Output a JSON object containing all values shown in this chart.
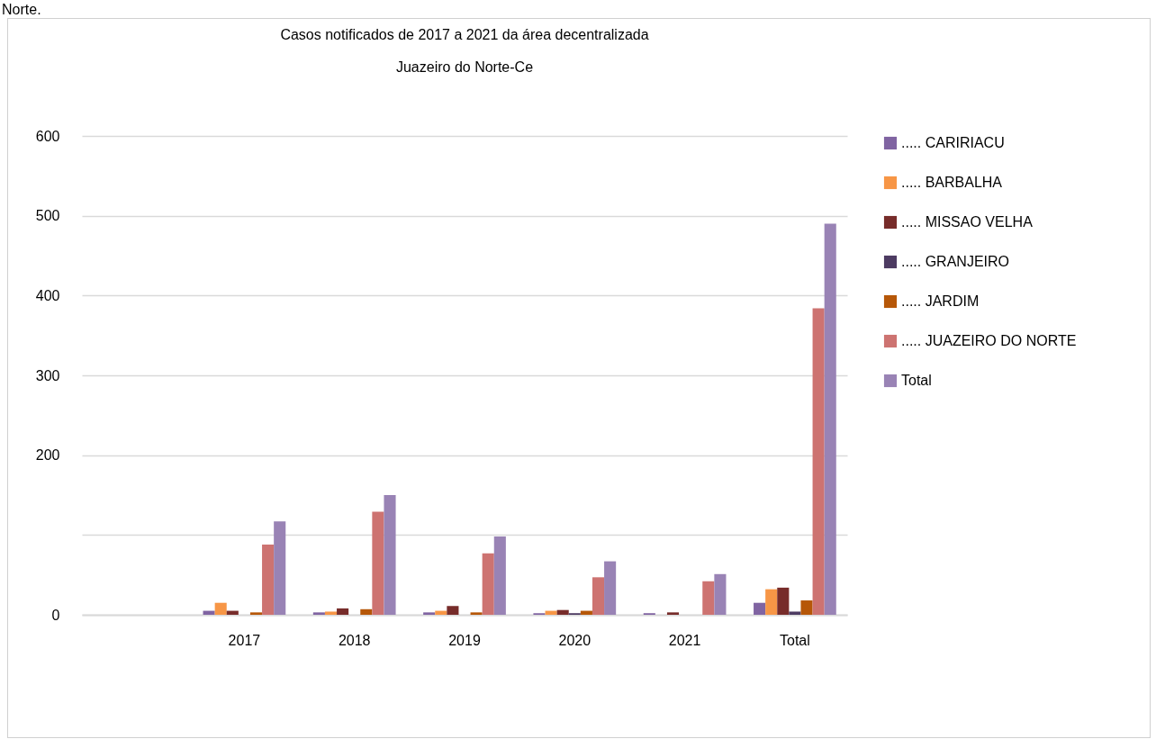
{
  "chart_data": {
    "type": "bar",
    "title": "Casos notificados de 2017 a 2021 da área decentralizada",
    "subtitle": "Juazeiro do Norte-Ce",
    "annotations": [
      "Norte."
    ],
    "categories": [
      null,
      "2017",
      "2018",
      "2019",
      "2020",
      "2021",
      "Total"
    ],
    "series": [
      {
        "name": "..... CARIRIACU",
        "color": "#8064a2",
        "values": [
          null,
          5,
          3,
          3,
          2,
          2,
          15
        ]
      },
      {
        "name": "..... BARBALHA",
        "color": "#f79646",
        "values": [
          null,
          15,
          4,
          5,
          5,
          0,
          32
        ]
      },
      {
        "name": "..... MISSAO VELHA",
        "color": "#772c2a",
        "values": [
          null,
          5,
          8,
          11,
          6,
          3,
          34
        ]
      },
      {
        "name": "..... GRANJEIRO",
        "color": "#4d3b62",
        "values": [
          null,
          0,
          0,
          0,
          2,
          0,
          4
        ]
      },
      {
        "name": "..... JARDIM",
        "color": "#b65708",
        "values": [
          null,
          3,
          7,
          3,
          5,
          0,
          18
        ]
      },
      {
        "name": "..... JUAZEIRO DO NORTE",
        "color": "#cd7371",
        "values": [
          null,
          88,
          129,
          77,
          47,
          42,
          384
        ]
      },
      {
        "name": "Total",
        "color": "#9983b5",
        "values": [
          null,
          117,
          150,
          98,
          67,
          51,
          490
        ]
      }
    ],
    "ylim": [
      0,
      600
    ],
    "yticks": [
      0,
      {
        "value": 100,
        "label": null
      },
      200,
      300,
      400,
      500,
      600
    ],
    "grid": "y",
    "legend": "right"
  }
}
